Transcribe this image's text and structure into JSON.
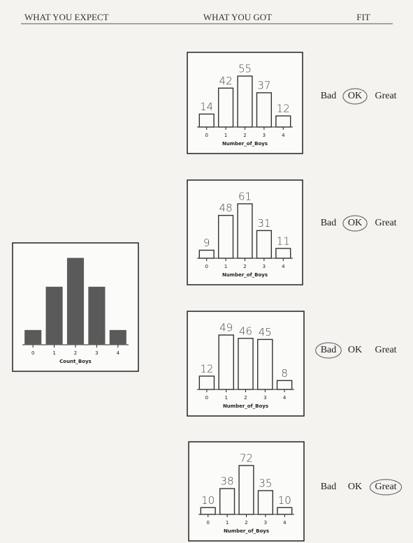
{
  "header": {
    "expect": "WHAT YOU EXPECT",
    "got": "WHAT YOU GOT",
    "fit": "FIT"
  },
  "expected": {
    "type": "bar",
    "categories": [
      "0",
      "1",
      "2",
      "3",
      "4"
    ],
    "values": [
      10,
      40,
      60,
      40,
      10
    ],
    "xlabel": "Count_Boys",
    "color": "#5a5a5a"
  },
  "rows": [
    {
      "chart": {
        "type": "bar",
        "categories": [
          "0",
          "1",
          "2",
          "3",
          "4"
        ],
        "values": [
          14,
          42,
          55,
          37,
          12
        ],
        "xlabel": "Number_of_Boys"
      },
      "fit": {
        "options": [
          "Bad",
          "OK",
          "Great"
        ],
        "selected": 1
      }
    },
    {
      "chart": {
        "type": "bar",
        "categories": [
          "0",
          "1",
          "2",
          "3",
          "4"
        ],
        "values": [
          9,
          48,
          61,
          31,
          11
        ],
        "xlabel": "Number_of_Boys"
      },
      "fit": {
        "options": [
          "Bad",
          "OK",
          "Great"
        ],
        "selected": 1
      }
    },
    {
      "chart": {
        "type": "bar",
        "categories": [
          "0",
          "1",
          "2",
          "3",
          "4"
        ],
        "values": [
          12,
          49,
          46,
          45,
          8
        ],
        "xlabel": "Number_of_Boys"
      },
      "fit": {
        "options": [
          "Bad",
          "OK",
          "Great"
        ],
        "selected": 0
      }
    },
    {
      "chart": {
        "type": "bar",
        "categories": [
          "0",
          "1",
          "2",
          "3",
          "4"
        ],
        "values": [
          10,
          38,
          72,
          35,
          10
        ],
        "xlabel": "Number_of_Boys"
      },
      "fit": {
        "options": [
          "Bad",
          "OK",
          "Great"
        ],
        "selected": 2
      }
    }
  ]
}
